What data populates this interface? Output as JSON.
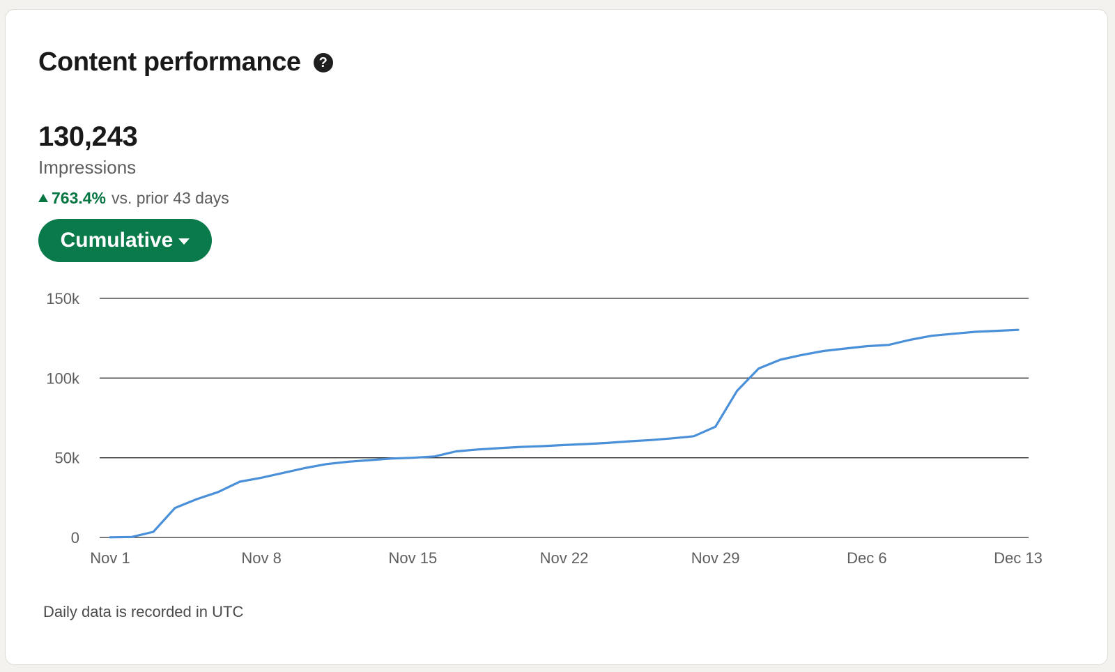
{
  "header": {
    "title": "Content performance",
    "help_icon": "question-circle-icon"
  },
  "metric": {
    "value": "130,243",
    "label": "Impressions",
    "change_icon": "triangle-up-icon",
    "change_percent": "763.4%",
    "change_text": "vs. prior 43 days",
    "change_color": "#057642"
  },
  "dropdown": {
    "label": "Cumulative",
    "icon": "caret-down-icon",
    "background": "#0a7a4a"
  },
  "footnote": "Daily data is recorded in UTC",
  "chart_data": {
    "type": "line",
    "title": "",
    "xlabel": "",
    "ylabel": "",
    "ylim": [
      0,
      150000
    ],
    "yticks": [
      0,
      50000,
      100000,
      150000
    ],
    "ytick_labels": [
      "0",
      "50k",
      "100k",
      "150k"
    ],
    "xticks": [
      "Nov 1",
      "Nov 8",
      "Nov 15",
      "Nov 22",
      "Nov 29",
      "Dec 6",
      "Dec 13"
    ],
    "xlim": [
      "2023-11-01",
      "2023-12-13"
    ],
    "grid": true,
    "color": "#4a90d9",
    "series": [
      {
        "x": [
          "2023-11-01",
          "2023-11-02",
          "2023-11-03",
          "2023-11-04",
          "2023-11-05",
          "2023-11-06",
          "2023-11-07",
          "2023-11-08",
          "2023-11-09",
          "2023-11-10",
          "2023-11-11",
          "2023-11-12",
          "2023-11-13",
          "2023-11-14",
          "2023-11-15",
          "2023-11-16",
          "2023-11-17",
          "2023-11-18",
          "2023-11-19",
          "2023-11-20",
          "2023-11-21",
          "2023-11-22",
          "2023-11-23",
          "2023-11-24",
          "2023-11-25",
          "2023-11-26",
          "2023-11-27",
          "2023-11-28",
          "2023-11-29",
          "2023-11-30",
          "2023-12-01",
          "2023-12-02",
          "2023-12-03",
          "2023-12-04",
          "2023-12-05",
          "2023-12-06",
          "2023-12-07",
          "2023-12-08",
          "2023-12-09",
          "2023-12-10",
          "2023-12-11",
          "2023-12-12",
          "2023-12-13"
        ],
        "values": [
          100,
          300,
          3500,
          18500,
          24000,
          28500,
          35000,
          37500,
          40500,
          43500,
          46000,
          47500,
          48500,
          49500,
          50000,
          50800,
          54000,
          55200,
          56000,
          56800,
          57300,
          58000,
          58600,
          59300,
          60300,
          61100,
          62200,
          63500,
          69500,
          92000,
          106000,
          111500,
          114500,
          117000,
          118500,
          120000,
          120800,
          124000,
          126500,
          127800,
          129000,
          129600,
          130243
        ]
      }
    ]
  }
}
